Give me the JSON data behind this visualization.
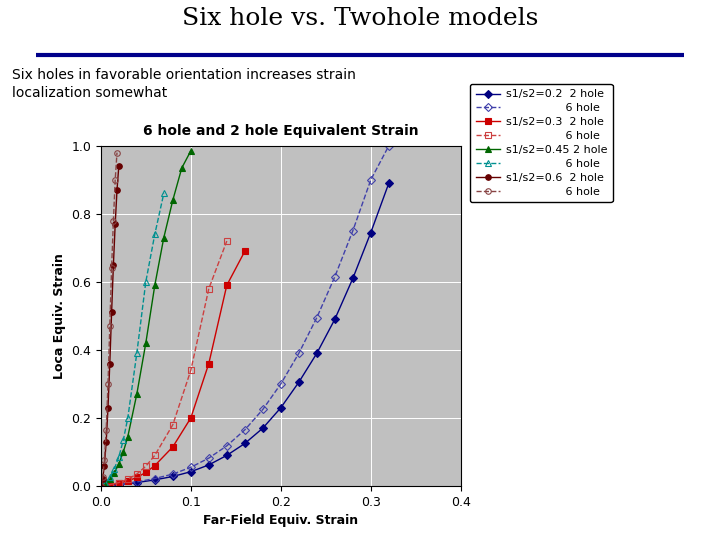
{
  "title": "Six hole vs. Twohole models",
  "subtitle": "Six holes in favorable orientation increases strain\nlocalization somewhat",
  "chart_title": "6 hole and 2 hole Equivalent Strain",
  "xlabel": "Far-Field Equiv. Strain",
  "ylabel": "Loca Equiv. Strain",
  "xlim": [
    0.0,
    0.4
  ],
  "ylim": [
    0.0,
    1.0
  ],
  "xticks": [
    0.0,
    0.1,
    0.2,
    0.3,
    0.4
  ],
  "yticks": [
    0.0,
    0.2,
    0.4,
    0.6,
    0.8,
    1.0
  ],
  "background_color": "#ffffff",
  "plot_bg_color": "#c0c0c0",
  "series": [
    {
      "label": "s1/s2=0.2  2 hole",
      "color": "#000080",
      "marker": "D",
      "filled": true,
      "linestyle": "-",
      "x": [
        0.0,
        0.01,
        0.02,
        0.04,
        0.06,
        0.08,
        0.1,
        0.12,
        0.14,
        0.16,
        0.18,
        0.2,
        0.22,
        0.24,
        0.26,
        0.28,
        0.3,
        0.32
      ],
      "y": [
        0.0,
        0.002,
        0.004,
        0.01,
        0.018,
        0.028,
        0.042,
        0.062,
        0.09,
        0.125,
        0.17,
        0.23,
        0.305,
        0.39,
        0.49,
        0.61,
        0.745,
        0.89
      ]
    },
    {
      "label": "                 6 hole",
      "color": "#4040aa",
      "marker": "D",
      "filled": false,
      "linestyle": "--",
      "x": [
        0.0,
        0.01,
        0.02,
        0.04,
        0.06,
        0.08,
        0.1,
        0.12,
        0.14,
        0.16,
        0.18,
        0.2,
        0.22,
        0.24,
        0.26,
        0.28,
        0.3,
        0.32
      ],
      "y": [
        0.0,
        0.002,
        0.005,
        0.012,
        0.022,
        0.035,
        0.055,
        0.082,
        0.118,
        0.165,
        0.225,
        0.3,
        0.39,
        0.495,
        0.615,
        0.75,
        0.9,
        1.0
      ]
    },
    {
      "label": "s1/s2=0.3  2 hole",
      "color": "#cc0000",
      "marker": "s",
      "filled": true,
      "linestyle": "-",
      "x": [
        0.0,
        0.01,
        0.02,
        0.03,
        0.04,
        0.05,
        0.06,
        0.08,
        0.1,
        0.12,
        0.14,
        0.16
      ],
      "y": [
        0.0,
        0.003,
        0.008,
        0.015,
        0.025,
        0.04,
        0.06,
        0.115,
        0.2,
        0.36,
        0.59,
        0.69
      ]
    },
    {
      "label": "                 6 hole",
      "color": "#cc4040",
      "marker": "s",
      "filled": false,
      "linestyle": "--",
      "x": [
        0.0,
        0.01,
        0.02,
        0.03,
        0.04,
        0.05,
        0.06,
        0.08,
        0.1,
        0.12,
        0.14
      ],
      "y": [
        0.0,
        0.004,
        0.01,
        0.02,
        0.035,
        0.058,
        0.09,
        0.18,
        0.34,
        0.58,
        0.72
      ]
    },
    {
      "label": "s1/s2=0.45 2 hole",
      "color": "#006600",
      "marker": "^",
      "filled": true,
      "linestyle": "-",
      "x": [
        0.0,
        0.005,
        0.01,
        0.015,
        0.02,
        0.025,
        0.03,
        0.04,
        0.05,
        0.06,
        0.07,
        0.08,
        0.09,
        0.1
      ],
      "y": [
        0.0,
        0.008,
        0.02,
        0.038,
        0.065,
        0.1,
        0.145,
        0.27,
        0.42,
        0.59,
        0.73,
        0.84,
        0.935,
        0.985
      ]
    },
    {
      "label": "                 6 hole",
      "color": "#009090",
      "marker": "^",
      "filled": false,
      "linestyle": "--",
      "x": [
        0.0,
        0.005,
        0.01,
        0.015,
        0.02,
        0.025,
        0.03,
        0.04,
        0.05,
        0.06,
        0.07
      ],
      "y": [
        0.0,
        0.01,
        0.025,
        0.05,
        0.085,
        0.135,
        0.2,
        0.39,
        0.6,
        0.74,
        0.86
      ]
    },
    {
      "label": "s1/s2=0.6  2 hole",
      "color": "#660000",
      "marker": "o",
      "filled": true,
      "linestyle": "-",
      "x": [
        0.0,
        0.002,
        0.004,
        0.006,
        0.008,
        0.01,
        0.012,
        0.014,
        0.016,
        0.018,
        0.02
      ],
      "y": [
        0.0,
        0.02,
        0.06,
        0.13,
        0.23,
        0.36,
        0.51,
        0.65,
        0.77,
        0.87,
        0.94
      ]
    },
    {
      "label": "                 6 hole",
      "color": "#884444",
      "marker": "o",
      "filled": false,
      "linestyle": "--",
      "x": [
        0.0,
        0.002,
        0.004,
        0.006,
        0.008,
        0.01,
        0.012,
        0.014,
        0.016,
        0.018
      ],
      "y": [
        0.0,
        0.025,
        0.075,
        0.165,
        0.3,
        0.47,
        0.64,
        0.78,
        0.9,
        0.98
      ]
    }
  ],
  "legend_entries": [
    {
      "label": "s1/s2=0.2  2 hole",
      "color": "#000080",
      "marker": "D",
      "filled": true,
      "linestyle": "-"
    },
    {
      "label": "                 6 hole",
      "color": "#4040aa",
      "marker": "D",
      "filled": false,
      "linestyle": "--"
    },
    {
      "label": "s1/s2=0.3  2 hole",
      "color": "#cc0000",
      "marker": "s",
      "filled": true,
      "linestyle": "-"
    },
    {
      "label": "                 6 hole",
      "color": "#cc4040",
      "marker": "s",
      "filled": false,
      "linestyle": "--"
    },
    {
      "label": "s1/s2=0.45 2 hole",
      "color": "#006600",
      "marker": "^",
      "filled": true,
      "linestyle": "-"
    },
    {
      "label": "                 6 hole",
      "color": "#009090",
      "marker": "^",
      "filled": false,
      "linestyle": "--"
    },
    {
      "label": "s1/s2=0.6  2 hole",
      "color": "#660000",
      "marker": "o",
      "filled": true,
      "linestyle": "-"
    },
    {
      "label": "                 6 hole",
      "color": "#884444",
      "marker": "o",
      "filled": false,
      "linestyle": "--"
    }
  ]
}
